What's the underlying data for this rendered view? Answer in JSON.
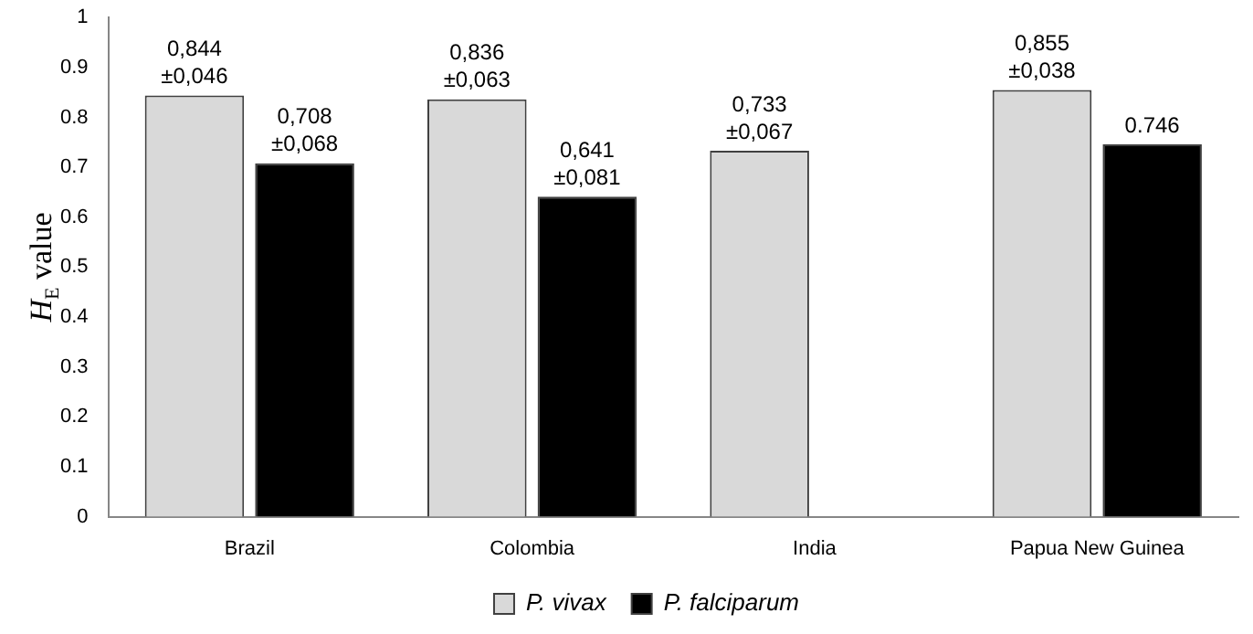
{
  "chart_data": {
    "type": "bar",
    "ylabel": "H$_{E}$ value",
    "categories": [
      "Brazil",
      "Colombia",
      "India",
      "Papua New Guinea"
    ],
    "series": [
      {
        "name": "P. vivax",
        "color": "#d9d9d9",
        "values": [
          0.844,
          0.836,
          0.733,
          0.855
        ],
        "value_labels": [
          "0,844\n±0,046",
          "0,836\n±0,063",
          "0,733\n±0,067",
          "0,855\n±0,038"
        ]
      },
      {
        "name": "P. falciparum",
        "color": "#000000",
        "values": [
          0.708,
          0.641,
          null,
          0.746
        ],
        "value_labels": [
          "0,708\n±0,068",
          "0,641\n±0,081",
          null,
          "0.746"
        ]
      }
    ],
    "ylim": [
      0,
      1
    ],
    "yticks": [
      0,
      0.1,
      0.2,
      0.3,
      0.4,
      0.5,
      0.6,
      0.7,
      0.8,
      0.9,
      1
    ],
    "grid": false,
    "legend": "bottom"
  }
}
